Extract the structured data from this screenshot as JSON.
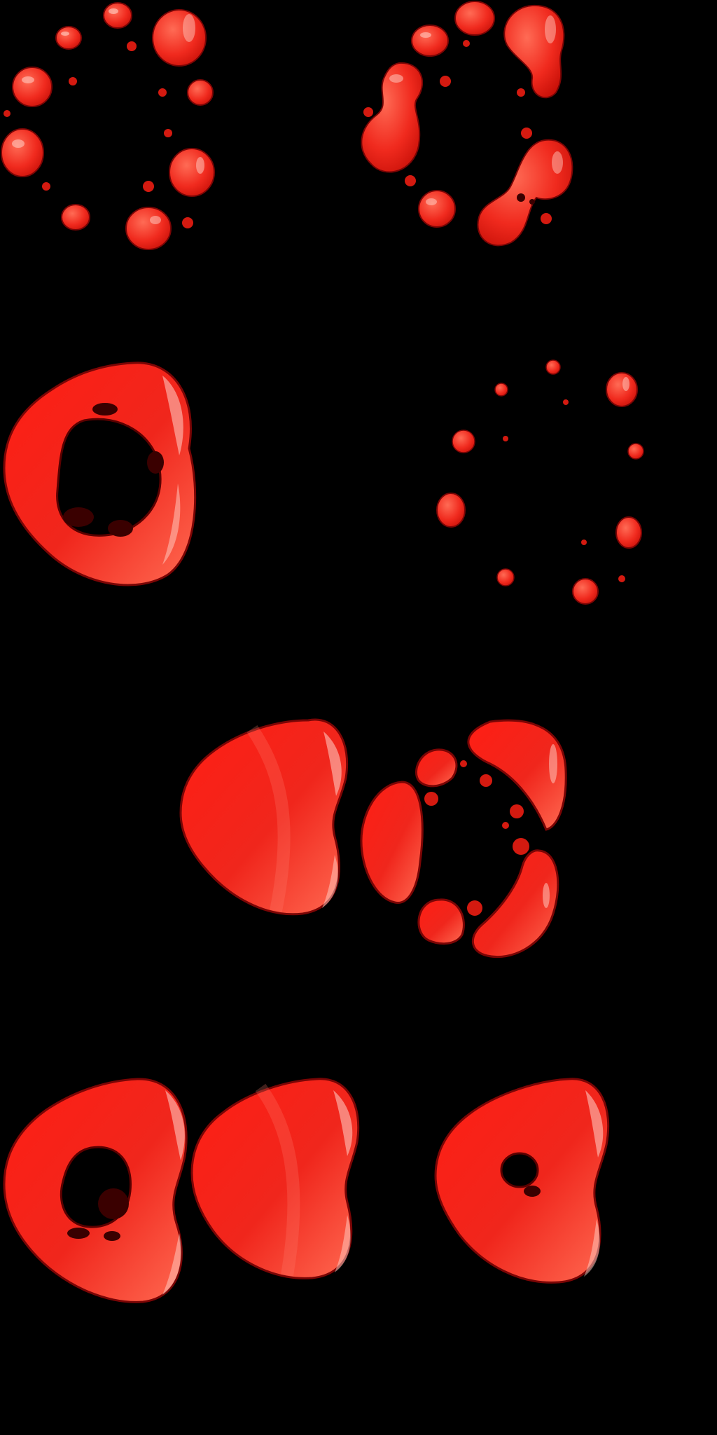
{
  "sheet": {
    "background": "#000000",
    "palette": {
      "red_light": "#ff5a46",
      "red_mid": "#f2231c",
      "red_dark": "#c8100c",
      "outline": "#7a0505",
      "highlight": "#ffd2c8",
      "hole_shadow": "#3a0000"
    },
    "frames": [
      {
        "id": "frame-1",
        "state": "scattered-droplets"
      },
      {
        "id": "frame-2",
        "state": "merging-droplets"
      },
      {
        "id": "frame-3",
        "state": "heart-ring-with-holes"
      },
      {
        "id": "frame-4",
        "state": "sparse-droplets"
      },
      {
        "id": "frame-5",
        "state": "solid-heart"
      },
      {
        "id": "frame-6",
        "state": "broken-ring-fragments"
      },
      {
        "id": "frame-7",
        "state": "heart-ring"
      },
      {
        "id": "frame-8",
        "state": "solid-heart"
      },
      {
        "id": "frame-9",
        "state": "heart-with-small-hole"
      }
    ]
  }
}
